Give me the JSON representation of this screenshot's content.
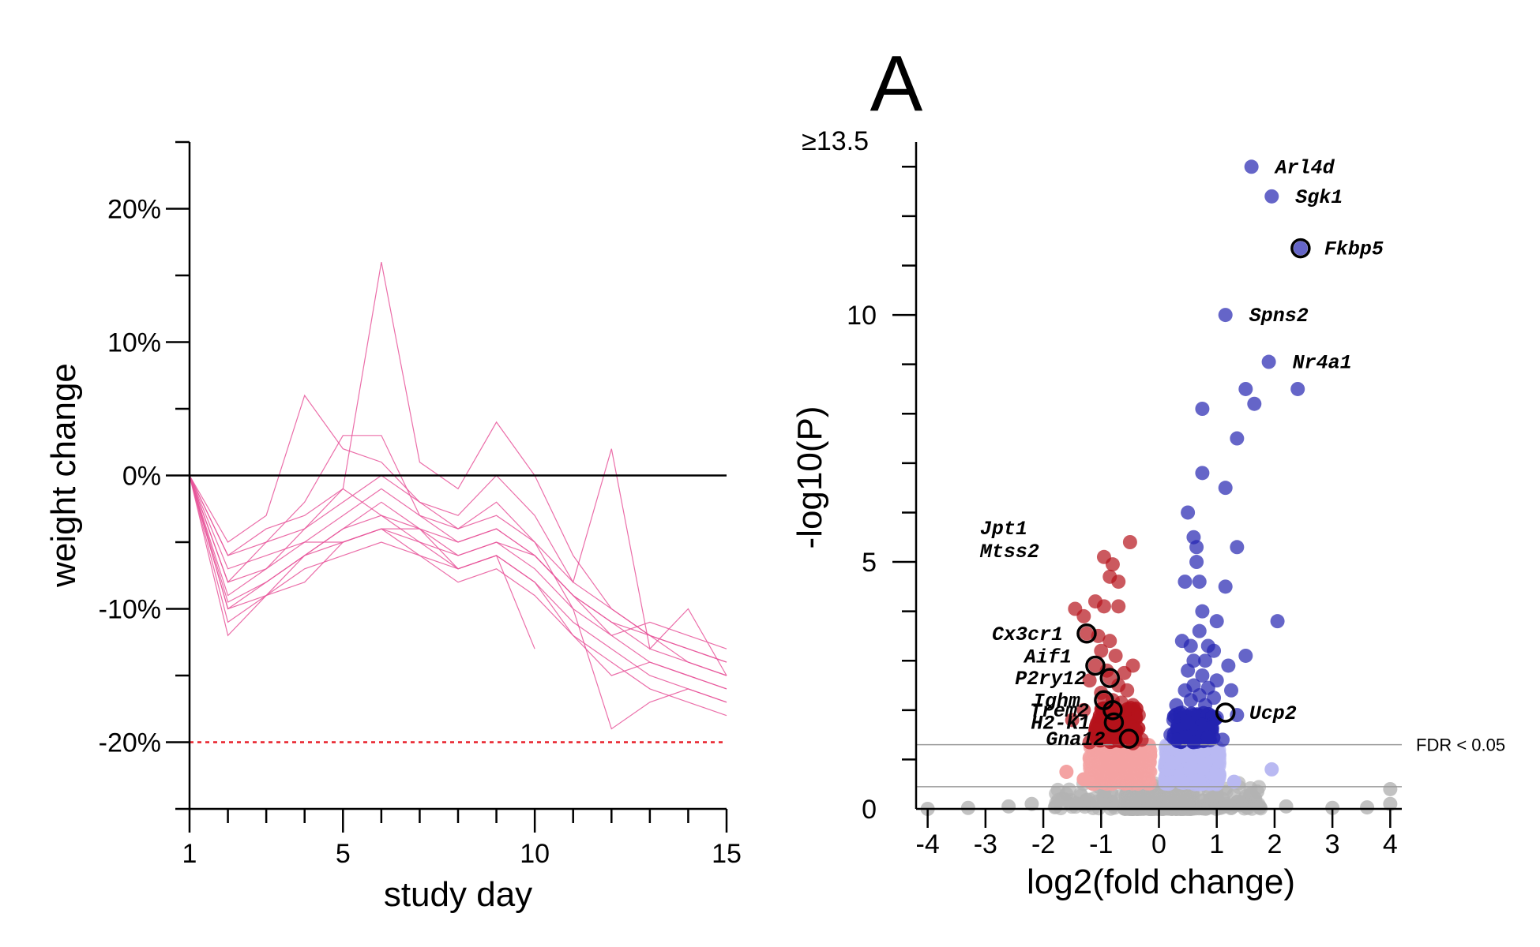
{
  "panel_letter": "A",
  "colors": {
    "weight_lines": "#e8559a",
    "zero_line": "#000000",
    "threshold_line": "#e8202a",
    "down_sig": "#b5121b",
    "down_nonsig": "#f4a3a3",
    "up_sig": "#2323b0",
    "up_nonsig": "#b9b9f2",
    "nonsig_gray": "#b3b3b3",
    "highlight_ring": "#000000",
    "fdr_line": "#9a9a9a"
  },
  "chart_data": [
    {
      "type": "line",
      "title": "",
      "xlabel": "study day",
      "ylabel": "weight change",
      "xlim": [
        1,
        15
      ],
      "ylim": [
        -25,
        25
      ],
      "xticks": [
        1,
        5,
        10,
        15
      ],
      "yticks": [
        20,
        10,
        0,
        -10,
        -20
      ],
      "ytick_labels": [
        "20%",
        "10%",
        "0%",
        "-10%",
        "-20%"
      ],
      "reference_lines": [
        {
          "y": 0,
          "style": "solid"
        },
        {
          "y": -20,
          "style": "dotted"
        }
      ],
      "x": [
        1,
        2,
        3,
        4,
        5,
        6,
        7,
        8,
        9,
        10,
        11,
        12,
        13,
        14,
        15
      ],
      "series": [
        {
          "values": [
            0,
            -9.5,
            -8,
            -6,
            -5,
            -4,
            -5,
            -7,
            -6,
            -8,
            -11,
            -13,
            -15,
            -16,
            -17
          ]
        },
        {
          "values": [
            0,
            -8,
            -7,
            -5,
            -3,
            -1,
            -3,
            -5,
            -4,
            -6,
            -9,
            -11,
            -13,
            -14,
            -15
          ]
        },
        {
          "values": [
            0,
            -6,
            -5,
            -4,
            -2,
            0,
            -2,
            -4,
            -3,
            -5,
            -8,
            -10,
            -12,
            -13,
            -14
          ]
        },
        {
          "values": [
            0,
            -10,
            -8,
            -6,
            -4,
            -3,
            -5,
            -6,
            -5,
            -7,
            -10,
            -12,
            -14,
            -15,
            -16
          ]
        },
        {
          "values": [
            0,
            -7,
            -6,
            -5,
            -5,
            -4,
            -4,
            -6,
            -5,
            -6,
            -9,
            -11,
            -12,
            -14,
            -15
          ]
        },
        {
          "values": [
            0,
            -11,
            -9,
            -7,
            -6,
            -5,
            -6,
            -8,
            -7,
            -9,
            -12,
            -14,
            -16,
            -17,
            -18
          ]
        },
        {
          "values": [
            0,
            -5,
            -3,
            6,
            2,
            1,
            -2,
            -3,
            0,
            -3,
            -8,
            2,
            -13,
            -10,
            -15
          ]
        },
        {
          "values": [
            0,
            -9,
            -7,
            -4,
            -1,
            16,
            1,
            -1,
            4,
            0,
            -6,
            -10,
            -12,
            -13,
            -14
          ]
        },
        {
          "values": [
            0,
            -8,
            -5,
            -2,
            3,
            3,
            -3,
            -4,
            -2,
            -5,
            -10,
            -19,
            -17,
            -16,
            -17
          ]
        },
        {
          "values": [
            0,
            -12,
            -9,
            -6,
            -4,
            -2,
            -4,
            -7,
            -6,
            -8,
            -12,
            -15,
            -14,
            -15,
            -16
          ]
        },
        {
          "values": [
            0,
            -6,
            -4,
            -3,
            -1,
            -3,
            -4,
            -5,
            -4,
            -6,
            -9,
            -12,
            -11,
            -12,
            -13
          ]
        },
        {
          "values": [
            0,
            -10,
            -9,
            -8,
            -5,
            -4,
            -6,
            -7,
            -6,
            -13,
            null,
            null,
            null,
            null,
            null
          ]
        }
      ]
    },
    {
      "type": "scatter",
      "title": "",
      "xlabel": "log2(fold change)",
      "ylabel": "-log10(P)",
      "xlim": [
        -4.2,
        4.2
      ],
      "ylim": [
        0,
        13.5
      ],
      "xticks": [
        -4,
        -3,
        -2,
        -1,
        0,
        1,
        2,
        3,
        4
      ],
      "yticks": [
        0,
        5,
        10
      ],
      "ytick_top_label": "≥13.5",
      "threshold_label": "FDR < 0.05",
      "threshold_y": 1.3,
      "lower_line_y": 0.45,
      "labeled_genes": [
        {
          "gene": "Arl4d",
          "x": 1.6,
          "y": 13.0,
          "ring": false
        },
        {
          "gene": "Sgk1",
          "x": 1.95,
          "y": 12.4,
          "ring": false
        },
        {
          "gene": "Fkbp5",
          "x": 2.45,
          "y": 11.35,
          "ring": true
        },
        {
          "gene": "Spns2",
          "x": 1.15,
          "y": 10.0,
          "ring": false
        },
        {
          "gene": "Nr4a1",
          "x": 1.9,
          "y": 9.05,
          "ring": false
        },
        {
          "gene": "Jpt1",
          "x": -0.5,
          "y": 5.4,
          "ring": false
        },
        {
          "gene": "Mtss2",
          "x": -0.95,
          "y": 5.1,
          "ring": false
        },
        {
          "gene": "Cx3cr1",
          "x": -1.25,
          "y": 3.55,
          "ring": true
        },
        {
          "gene": "Aif1",
          "x": -1.1,
          "y": 2.9,
          "ring": true
        },
        {
          "gene": "P2ry12",
          "x": -0.85,
          "y": 2.65,
          "ring": true
        },
        {
          "gene": "Ighm",
          "x": -0.95,
          "y": 2.2,
          "ring": true
        },
        {
          "gene": "Trem2",
          "x": -0.8,
          "y": 2.0,
          "ring": true
        },
        {
          "gene": "H2-K1",
          "x": -0.78,
          "y": 1.75,
          "ring": true
        },
        {
          "gene": "Gna12",
          "x": -0.52,
          "y": 1.42,
          "ring": true
        },
        {
          "gene": "Ucp2",
          "x": 1.15,
          "y": 1.95,
          "ring": true
        }
      ],
      "up_significant": [
        [
          1.6,
          13.0
        ],
        [
          1.95,
          12.4
        ],
        [
          2.45,
          11.35
        ],
        [
          1.15,
          10.0
        ],
        [
          1.9,
          9.05
        ],
        [
          1.5,
          8.5
        ],
        [
          2.4,
          8.5
        ],
        [
          1.65,
          8.2
        ],
        [
          0.75,
          8.1
        ],
        [
          1.35,
          7.5
        ],
        [
          0.75,
          6.8
        ],
        [
          1.15,
          6.5
        ],
        [
          0.5,
          6.0
        ],
        [
          0.6,
          5.5
        ],
        [
          0.65,
          5.3
        ],
        [
          1.35,
          5.3
        ],
        [
          0.65,
          5.0
        ],
        [
          0.45,
          4.6
        ],
        [
          0.7,
          4.6
        ],
        [
          1.15,
          4.5
        ],
        [
          0.75,
          4.0
        ],
        [
          1.0,
          3.8
        ],
        [
          2.05,
          3.8
        ],
        [
          0.7,
          3.6
        ],
        [
          0.4,
          3.4
        ],
        [
          0.55,
          3.3
        ],
        [
          0.85,
          3.3
        ],
        [
          0.95,
          3.2
        ],
        [
          1.5,
          3.1
        ],
        [
          0.6,
          3.0
        ],
        [
          0.8,
          3.0
        ],
        [
          1.2,
          2.9
        ],
        [
          0.5,
          2.8
        ],
        [
          0.75,
          2.7
        ],
        [
          1.0,
          2.6
        ],
        [
          0.6,
          2.5
        ],
        [
          0.85,
          2.45
        ],
        [
          0.45,
          2.4
        ],
        [
          1.25,
          2.4
        ],
        [
          0.7,
          2.3
        ],
        [
          0.95,
          2.25
        ],
        [
          0.55,
          2.2
        ],
        [
          0.3,
          2.1
        ],
        [
          0.8,
          2.1
        ],
        [
          1.35,
          1.9
        ],
        [
          0.4,
          1.95
        ],
        [
          0.6,
          1.9
        ],
        [
          1.0,
          1.85
        ],
        [
          0.25,
          1.8
        ],
        [
          0.5,
          1.75
        ],
        [
          0.75,
          1.7
        ],
        [
          0.9,
          1.65
        ],
        [
          0.35,
          1.6
        ],
        [
          0.65,
          1.55
        ],
        [
          0.2,
          1.5
        ],
        [
          0.45,
          1.45
        ],
        [
          0.85,
          1.45
        ],
        [
          0.3,
          1.4
        ],
        [
          0.6,
          1.35
        ],
        [
          1.1,
          1.4
        ]
      ],
      "down_significant": [
        [
          -0.5,
          5.4
        ],
        [
          -0.95,
          5.1
        ],
        [
          -0.8,
          4.95
        ],
        [
          -0.85,
          4.7
        ],
        [
          -0.7,
          4.6
        ],
        [
          -1.1,
          4.2
        ],
        [
          -0.95,
          4.1
        ],
        [
          -0.7,
          4.1
        ],
        [
          -1.45,
          4.05
        ],
        [
          -1.3,
          3.9
        ],
        [
          -1.25,
          3.55
        ],
        [
          -1.05,
          3.5
        ],
        [
          -0.85,
          3.4
        ],
        [
          -1.0,
          3.2
        ],
        [
          -0.75,
          3.1
        ],
        [
          -1.1,
          2.9
        ],
        [
          -0.45,
          2.9
        ],
        [
          -0.9,
          2.8
        ],
        [
          -0.6,
          2.75
        ],
        [
          -0.85,
          2.65
        ],
        [
          -1.2,
          2.6
        ],
        [
          -0.7,
          2.5
        ],
        [
          -0.55,
          2.4
        ],
        [
          -1.0,
          2.35
        ],
        [
          -0.95,
          2.2
        ],
        [
          -0.8,
          2.2
        ],
        [
          -0.65,
          2.15
        ],
        [
          -0.45,
          2.1
        ],
        [
          -1.3,
          2.0
        ],
        [
          -0.8,
          2.0
        ],
        [
          -0.6,
          1.95
        ],
        [
          -0.35,
          1.9
        ],
        [
          -1.5,
          1.8
        ],
        [
          -0.78,
          1.75
        ],
        [
          -0.5,
          1.75
        ],
        [
          -0.9,
          1.7
        ],
        [
          -0.65,
          1.65
        ],
        [
          -1.1,
          1.6
        ],
        [
          -0.4,
          1.6
        ],
        [
          -0.75,
          1.55
        ],
        [
          -0.55,
          1.5
        ],
        [
          -0.95,
          1.45
        ],
        [
          -0.52,
          1.42
        ],
        [
          -0.3,
          1.4
        ],
        [
          -0.7,
          1.38
        ],
        [
          -1.2,
          1.35
        ],
        [
          -0.45,
          1.33
        ]
      ]
    }
  ]
}
